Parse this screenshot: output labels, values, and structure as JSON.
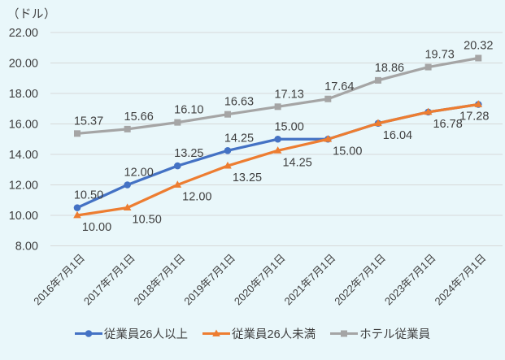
{
  "title": "（ドル）",
  "colors": {
    "background": "#E9F7FA",
    "gridline": "#D6D9D9",
    "text": "#3F3F3F",
    "blue": "#4472C4",
    "orange": "#ED7D31",
    "gray": "#A5A5A5"
  },
  "chart_data": {
    "type": "line",
    "title": "（ドル）",
    "ylabel": "（ドル）",
    "xlabel": "",
    "categories": [
      "2016年7月1日",
      "2017年7月1日",
      "2018年7月1日",
      "2019年7月1日",
      "2020年7月1日",
      "2021年7月1日",
      "2022年7月1日",
      "2023年7月1日",
      "2024年7月1日"
    ],
    "ylim": [
      8,
      22
    ],
    "yticks": [
      8,
      10,
      12,
      14,
      16,
      18,
      20,
      22
    ],
    "ytick_labels": [
      "8.00",
      "10.00",
      "12.00",
      "14.00",
      "16.00",
      "18.00",
      "20.00",
      "22.00"
    ],
    "grid": true,
    "legend_position": "bottom",
    "series": [
      {
        "key": "employees-26-plus",
        "name": "従業員26人以上",
        "color": "#4472C4",
        "marker": "circle",
        "label_position": "above",
        "values": [
          10.5,
          12.0,
          13.25,
          14.25,
          15.0,
          15.0,
          16.04,
          16.78,
          17.28
        ],
        "labels": [
          "10.50",
          "12.00",
          "13.25",
          "14.25",
          "15.00",
          "",
          "",
          "",
          ""
        ]
      },
      {
        "key": "employees-under-26",
        "name": "従業員26人未満",
        "color": "#ED7D31",
        "marker": "triangle",
        "label_position": "below",
        "values": [
          10.0,
          10.5,
          12.0,
          13.25,
          14.25,
          15.0,
          16.04,
          16.78,
          17.28
        ],
        "labels": [
          "10.00",
          "10.50",
          "12.00",
          "13.25",
          "14.25",
          "15.00",
          "16.04",
          "16.78",
          "17.28"
        ]
      },
      {
        "key": "hotel-employees",
        "name": "ホテル従業員",
        "color": "#A5A5A5",
        "marker": "square",
        "label_position": "above",
        "values": [
          15.37,
          15.66,
          16.1,
          16.63,
          17.13,
          17.64,
          18.86,
          19.73,
          20.32
        ],
        "labels": [
          "15.37",
          "15.66",
          "16.10",
          "16.63",
          "17.13",
          "17.64",
          "18.86",
          "19.73",
          "20.32"
        ]
      }
    ]
  }
}
